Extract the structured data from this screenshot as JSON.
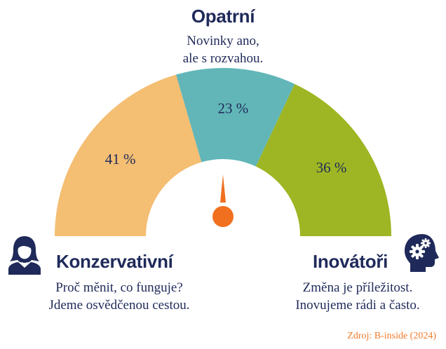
{
  "chart_data": {
    "type": "pie",
    "variant": "semicircle-gauge",
    "segments": [
      {
        "key": "konzervativni",
        "title": "Konzervativní",
        "value": 41,
        "label": "41 %",
        "color": "#f4be73",
        "desc": [
          "Proč měnit, co funguje?",
          "Jdeme osvědčenou cestou."
        ],
        "icon": "woman-avatar-icon"
      },
      {
        "key": "opatrni",
        "title": "Opatrní",
        "value": 23,
        "label": "23 %",
        "color": "#62b6b8",
        "desc": [
          "Novinky ano,",
          "ale s rozvahou."
        ],
        "icon": ""
      },
      {
        "key": "inovatori",
        "title": "Inovátoři",
        "value": 36,
        "label": "36 %",
        "color": "#9eb623",
        "desc": [
          "Změna je příležitost.",
          "Inovujeme rádi a často."
        ],
        "icon": "head-gears-icon"
      }
    ],
    "needle_color": "#f07020"
  },
  "source": "Zdroj: B-inside (2024)"
}
